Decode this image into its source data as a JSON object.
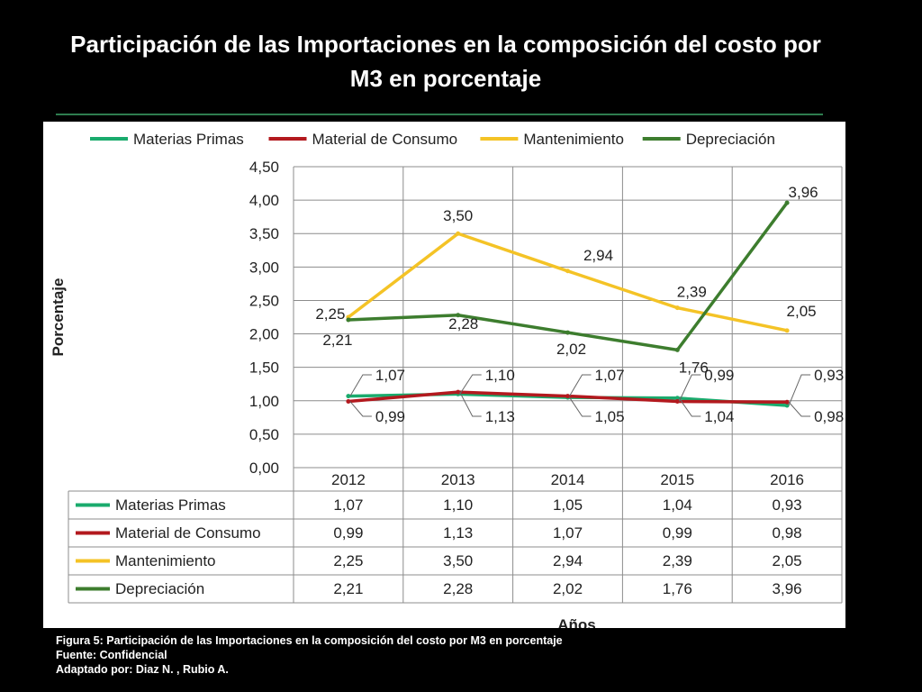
{
  "slide": {
    "title_line1": "Participación de las Importaciones en la composición del costo por",
    "title_line2": "M3 en porcentaje"
  },
  "caption": {
    "line1": "Figura 5: Participación de las Importaciones en la composición del costo por M3 en porcentaje",
    "line2": "Fuente:  Confidencial",
    "line3": "Adaptado por: Diaz N. , Rubio  A."
  },
  "colors": {
    "background": "#000000",
    "title_rule": "#2e7d4f",
    "grid": "#8c8c8c"
  },
  "chart_data": {
    "type": "line",
    "categories": [
      "2012",
      "2013",
      "2014",
      "2015",
      "2016"
    ],
    "xlabel": "Años",
    "ylabel": "Porcentaje",
    "ylim": [
      0,
      4.5
    ],
    "yticks": [
      "0,00",
      "0,50",
      "1,00",
      "1,50",
      "2,00",
      "2,50",
      "3,00",
      "3,50",
      "4,00",
      "4,50"
    ],
    "grid": true,
    "legend_position": "top",
    "data_table": true,
    "series": [
      {
        "name": "Materias Primas",
        "color": "#1aab6d",
        "values": [
          1.07,
          1.1,
          1.05,
          1.04,
          0.93
        ],
        "labels": [
          "1,07",
          "1,10",
          "1,05",
          "1,04",
          "0,93"
        ]
      },
      {
        "name": "Material de Consumo",
        "color": "#b3191e",
        "values": [
          0.99,
          1.13,
          1.07,
          0.99,
          0.98
        ],
        "labels": [
          "0,99",
          "1,13",
          "1,07",
          "0,99",
          "0,98"
        ]
      },
      {
        "name": "Mantenimiento",
        "color": "#f4c326",
        "values": [
          2.25,
          3.5,
          2.94,
          2.39,
          2.05
        ],
        "labels": [
          "2,25",
          "3,50",
          "2,94",
          "2,39",
          "2,05"
        ]
      },
      {
        "name": "Depreciación",
        "color": "#3d7d2e",
        "values": [
          2.21,
          2.28,
          2.02,
          1.76,
          3.96
        ],
        "labels": [
          "2,21",
          "2,28",
          "2,02",
          "1,76",
          "3,96"
        ]
      }
    ]
  }
}
